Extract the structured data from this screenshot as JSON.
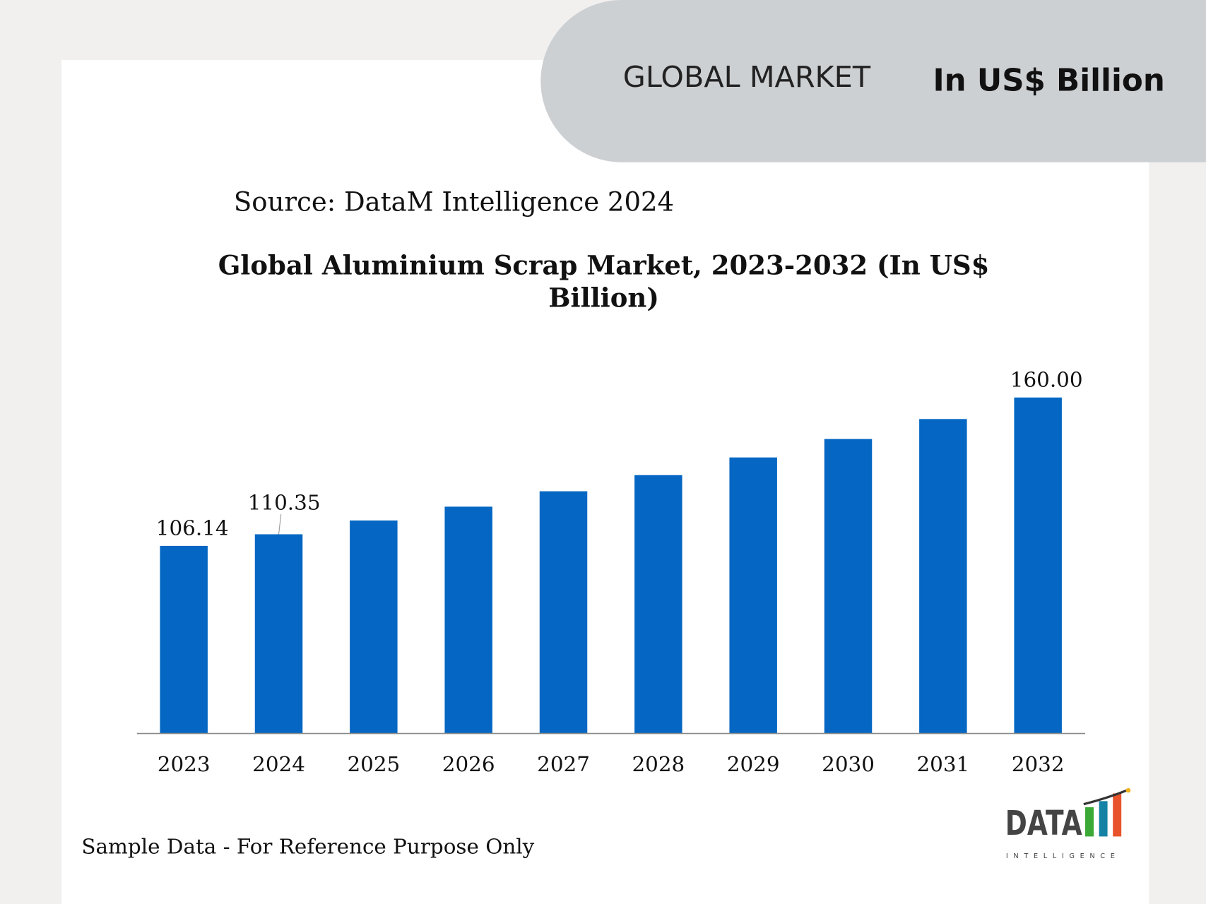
{
  "header": {
    "market_label": "GLOBAL MARKET",
    "unit_label": "In US$ Billion"
  },
  "source": "Source: DataM Intelligence 2024",
  "footer_note": "Sample Data - For Reference Purpose Only",
  "logo": {
    "text": "DATA",
    "subtext": "INTELLIGENCE"
  },
  "chart_data": {
    "type": "bar",
    "title": "Global Aluminium Scrap Market, 2023-2032 (In US$ Billion)",
    "xlabel": "",
    "ylabel": "",
    "categories": [
      "2023",
      "2024",
      "2025",
      "2026",
      "2027",
      "2028",
      "2029",
      "2030",
      "2031",
      "2032"
    ],
    "values": [
      106.14,
      110.35,
      115.35,
      120.37,
      125.96,
      131.82,
      138.24,
      144.93,
      152.19,
      160.0
    ],
    "data_labels": {
      "2023": "106.14",
      "2024": "110.35",
      "2032": "160.00"
    },
    "bar_color": "#0567c3",
    "grid": false,
    "legend": "none"
  }
}
